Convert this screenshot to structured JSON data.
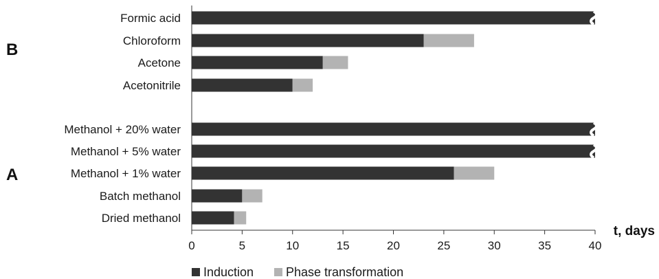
{
  "chart_data": {
    "type": "bar",
    "orientation": "horizontal",
    "stacked": true,
    "categories": [
      "Formic acid",
      "Chloroform",
      "Acetone",
      "Acetonitrile",
      "Methanol + 20% water",
      "Methanol + 5% water",
      "Methanol + 1% water",
      "Batch methanol",
      "Dried methanol"
    ],
    "groups": [
      {
        "label": "B",
        "categories": [
          "Formic acid",
          "Chloroform",
          "Acetone",
          "Acetonitrile"
        ]
      },
      {
        "label": "A",
        "categories": [
          "Methanol + 20% water",
          "Methanol + 5% water",
          "Methanol + 1% water",
          "Batch methanol",
          "Dried methanol"
        ]
      }
    ],
    "series": [
      {
        "name": "Induction",
        "color": "#333333",
        "values": [
          40,
          23,
          13,
          10,
          40,
          40,
          26,
          5,
          4.2
        ]
      },
      {
        "name": "Phase transformation",
        "color": "#b3b3b3",
        "values": [
          0,
          5,
          2.5,
          2,
          0,
          0,
          4,
          2,
          1.2
        ]
      }
    ],
    "broken_bars": [
      "Formic acid",
      "Methanol + 20% water",
      "Methanol + 5% water"
    ],
    "xlabel": "t, days",
    "xlim": [
      0,
      40
    ],
    "xticks": [
      0,
      5,
      10,
      15,
      20,
      25,
      30,
      35,
      40
    ],
    "grid": false,
    "legend": "bottom"
  }
}
